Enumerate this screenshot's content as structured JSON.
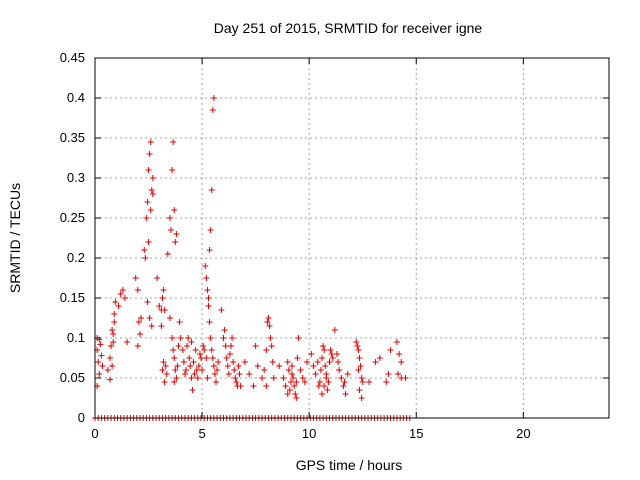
{
  "chart_data": {
    "type": "scatter",
    "title": "Day 251 of 2015, SRMTID for receiver igne",
    "xlabel": "GPS time / hours",
    "ylabel": "SRMTID / TECUs",
    "xlim": [
      0,
      24
    ],
    "ylim": [
      0,
      0.45
    ],
    "xticks": [
      0,
      5,
      10,
      15,
      20
    ],
    "xtick_labels": [
      "0",
      "5",
      "10",
      "15",
      "20"
    ],
    "yticks": [
      0,
      0.05,
      0.1,
      0.15,
      0.2,
      0.25,
      0.3,
      0.35,
      0.4,
      0.45
    ],
    "ytick_labels": [
      "0",
      "0.05",
      "0.1",
      "0.15",
      "0.2",
      "0.25",
      "0.3",
      "0.35",
      "0.4",
      "0.45"
    ],
    "grid": true,
    "marker": "+",
    "color": "#e00000",
    "series": [
      {
        "name": "SRMTID",
        "points": [
          [
            0.1,
            0.1
          ],
          [
            0.1,
            0.085
          ],
          [
            0.15,
            0.07
          ],
          [
            0.2,
            0.055
          ],
          [
            0.1,
            0.04
          ],
          [
            0.25,
            0.092
          ],
          [
            0.3,
            0.078
          ],
          [
            0.35,
            0.065
          ],
          [
            0.2,
            0.098
          ],
          [
            0.6,
            0.06
          ],
          [
            0.7,
            0.048
          ],
          [
            0.75,
            0.09
          ],
          [
            0.8,
            0.11
          ],
          [
            0.85,
            0.095
          ],
          [
            0.9,
            0.13
          ],
          [
            0.95,
            0.145
          ],
          [
            0.7,
            0.075
          ],
          [
            0.8,
            0.065
          ],
          [
            0.85,
            0.105
          ],
          [
            0.9,
            0.12
          ],
          [
            1.1,
            0.14
          ],
          [
            1.2,
            0.155
          ],
          [
            1.3,
            0.16
          ],
          [
            1.4,
            0.15
          ],
          [
            1.5,
            0.095
          ],
          [
            1.9,
            0.175
          ],
          [
            2.0,
            0.16
          ],
          [
            2.05,
            0.12
          ],
          [
            2.1,
            0.105
          ],
          [
            2.0,
            0.09
          ],
          [
            2.15,
            0.125
          ],
          [
            2.3,
            0.21
          ],
          [
            2.35,
            0.2
          ],
          [
            2.4,
            0.25
          ],
          [
            2.45,
            0.27
          ],
          [
            2.5,
            0.31
          ],
          [
            2.55,
            0.33
          ],
          [
            2.6,
            0.345
          ],
          [
            2.65,
            0.285
          ],
          [
            2.7,
            0.28
          ],
          [
            2.5,
            0.22
          ],
          [
            2.6,
            0.26
          ],
          [
            2.45,
            0.145
          ],
          [
            2.55,
            0.125
          ],
          [
            2.65,
            0.115
          ],
          [
            2.7,
            0.3
          ],
          [
            2.9,
            0.175
          ],
          [
            3.0,
            0.14
          ],
          [
            3.1,
            0.135
          ],
          [
            3.15,
            0.15
          ],
          [
            3.2,
            0.16
          ],
          [
            3.25,
            0.135
          ],
          [
            3.1,
            0.115
          ],
          [
            3.2,
            0.07
          ],
          [
            3.3,
            0.065
          ],
          [
            3.35,
            0.055
          ],
          [
            3.25,
            0.045
          ],
          [
            3.15,
            0.06
          ],
          [
            3.4,
            0.205
          ],
          [
            3.5,
            0.25
          ],
          [
            3.55,
            0.235
          ],
          [
            3.6,
            0.31
          ],
          [
            3.65,
            0.345
          ],
          [
            3.7,
            0.26
          ],
          [
            3.75,
            0.22
          ],
          [
            3.8,
            0.23
          ],
          [
            3.5,
            0.125
          ],
          [
            3.6,
            0.1
          ],
          [
            3.65,
            0.085
          ],
          [
            3.7,
            0.075
          ],
          [
            3.75,
            0.06
          ],
          [
            3.8,
            0.05
          ],
          [
            3.85,
            0.065
          ],
          [
            3.9,
            0.09
          ],
          [
            3.95,
            0.12
          ],
          [
            3.7,
            0.045
          ],
          [
            4.0,
            0.1
          ],
          [
            4.1,
            0.085
          ],
          [
            4.15,
            0.07
          ],
          [
            4.2,
            0.055
          ],
          [
            4.25,
            0.06
          ],
          [
            4.3,
            0.09
          ],
          [
            4.35,
            0.1
          ],
          [
            4.4,
            0.075
          ],
          [
            4.45,
            0.065
          ],
          [
            4.5,
            0.05
          ],
          [
            4.55,
            0.035
          ],
          [
            4.6,
            0.07
          ],
          [
            4.7,
            0.085
          ],
          [
            4.75,
            0.06
          ],
          [
            4.8,
            0.05
          ],
          [
            4.85,
            0.065
          ],
          [
            4.9,
            0.08
          ],
          [
            4.95,
            0.075
          ],
          [
            4.5,
            0.095
          ],
          [
            4.65,
            0.055
          ],
          [
            5.0,
            0.06
          ],
          [
            5.05,
            0.09
          ],
          [
            5.1,
            0.085
          ],
          [
            5.15,
            0.19
          ],
          [
            5.2,
            0.175
          ],
          [
            5.25,
            0.16
          ],
          [
            5.3,
            0.15
          ],
          [
            5.35,
            0.21
          ],
          [
            5.4,
            0.235
          ],
          [
            5.45,
            0.285
          ],
          [
            5.5,
            0.385
          ],
          [
            5.55,
            0.4
          ],
          [
            5.3,
            0.14
          ],
          [
            5.35,
            0.12
          ],
          [
            5.4,
            0.1
          ],
          [
            5.45,
            0.085
          ],
          [
            5.5,
            0.075
          ],
          [
            5.55,
            0.065
          ],
          [
            5.6,
            0.055
          ],
          [
            5.65,
            0.045
          ],
          [
            5.7,
            0.06
          ],
          [
            5.75,
            0.07
          ],
          [
            5.2,
            0.075
          ],
          [
            5.25,
            0.05
          ],
          [
            5.9,
            0.135
          ],
          [
            6.0,
            0.1
          ],
          [
            6.05,
            0.11
          ],
          [
            6.1,
            0.09
          ],
          [
            6.15,
            0.075
          ],
          [
            6.2,
            0.065
          ],
          [
            6.25,
            0.055
          ],
          [
            6.3,
            0.08
          ],
          [
            6.35,
            0.09
          ],
          [
            6.4,
            0.1
          ],
          [
            6.45,
            0.07
          ],
          [
            6.5,
            0.06
          ],
          [
            6.55,
            0.05
          ],
          [
            6.6,
            0.045
          ],
          [
            6.65,
            0.04
          ],
          [
            6.7,
            0.065
          ],
          [
            6.75,
            0.055
          ],
          [
            6.8,
            0.04
          ],
          [
            7.0,
            0.07
          ],
          [
            7.2,
            0.055
          ],
          [
            7.4,
            0.04
          ],
          [
            7.5,
            0.09
          ],
          [
            7.6,
            0.065
          ],
          [
            7.8,
            0.05
          ],
          [
            7.9,
            0.06
          ],
          [
            8.0,
            0.085
          ],
          [
            8.05,
            0.12
          ],
          [
            8.1,
            0.125
          ],
          [
            8.15,
            0.115
          ],
          [
            8.2,
            0.1
          ],
          [
            8.25,
            0.09
          ],
          [
            8.3,
            0.07
          ],
          [
            8.35,
            0.05
          ],
          [
            8.0,
            0.04
          ],
          [
            8.6,
            0.065
          ],
          [
            8.8,
            0.05
          ],
          [
            8.9,
            0.04
          ],
          [
            9.0,
            0.07
          ],
          [
            9.05,
            0.06
          ],
          [
            9.1,
            0.035
          ],
          [
            9.15,
            0.045
          ],
          [
            9.2,
            0.055
          ],
          [
            9.25,
            0.05
          ],
          [
            9.3,
            0.04
          ],
          [
            9.35,
            0.03
          ],
          [
            9.4,
            0.025
          ],
          [
            9.45,
            0.075
          ],
          [
            9.5,
            0.1
          ],
          [
            9.6,
            0.06
          ],
          [
            9.7,
            0.05
          ],
          [
            9.8,
            0.045
          ],
          [
            9.9,
            0.07
          ],
          [
            9.0,
            0.03
          ],
          [
            9.2,
            0.065
          ],
          [
            9.4,
            0.045
          ],
          [
            10.1,
            0.08
          ],
          [
            10.2,
            0.065
          ],
          [
            10.3,
            0.055
          ],
          [
            10.4,
            0.07
          ],
          [
            10.45,
            0.04
          ],
          [
            10.5,
            0.045
          ],
          [
            10.55,
            0.06
          ],
          [
            10.6,
            0.075
          ],
          [
            10.65,
            0.09
          ],
          [
            10.7,
            0.085
          ],
          [
            10.75,
            0.065
          ],
          [
            10.8,
            0.05
          ],
          [
            10.85,
            0.035
          ],
          [
            10.9,
            0.045
          ],
          [
            10.95,
            0.07
          ],
          [
            11.0,
            0.085
          ],
          [
            11.05,
            0.08
          ],
          [
            11.1,
            0.075
          ],
          [
            10.6,
            0.03
          ],
          [
            10.7,
            0.04
          ],
          [
            10.8,
            0.055
          ],
          [
            11.2,
            0.11
          ],
          [
            11.3,
            0.08
          ],
          [
            11.35,
            0.07
          ],
          [
            11.4,
            0.06
          ],
          [
            11.5,
            0.05
          ],
          [
            11.6,
            0.04
          ],
          [
            11.65,
            0.045
          ],
          [
            11.7,
            0.03
          ],
          [
            11.8,
            0.055
          ],
          [
            12.2,
            0.095
          ],
          [
            12.25,
            0.09
          ],
          [
            12.3,
            0.085
          ],
          [
            12.35,
            0.075
          ],
          [
            12.4,
            0.065
          ],
          [
            12.45,
            0.05
          ],
          [
            12.5,
            0.045
          ],
          [
            12.35,
            0.035
          ],
          [
            12.45,
            0.025
          ],
          [
            12.3,
            0.06
          ],
          [
            12.8,
            0.045
          ],
          [
            13.1,
            0.07
          ],
          [
            13.3,
            0.075
          ],
          [
            13.6,
            0.045
          ],
          [
            13.7,
            0.055
          ],
          [
            13.8,
            0.085
          ],
          [
            14.1,
            0.095
          ],
          [
            14.2,
            0.08
          ],
          [
            14.3,
            0.07
          ],
          [
            14.15,
            0.055
          ],
          [
            14.3,
            0.05
          ],
          [
            14.5,
            0.05
          ]
        ],
        "zero_points_x": [
          0,
          14.7,
          0.15
        ]
      }
    ]
  }
}
